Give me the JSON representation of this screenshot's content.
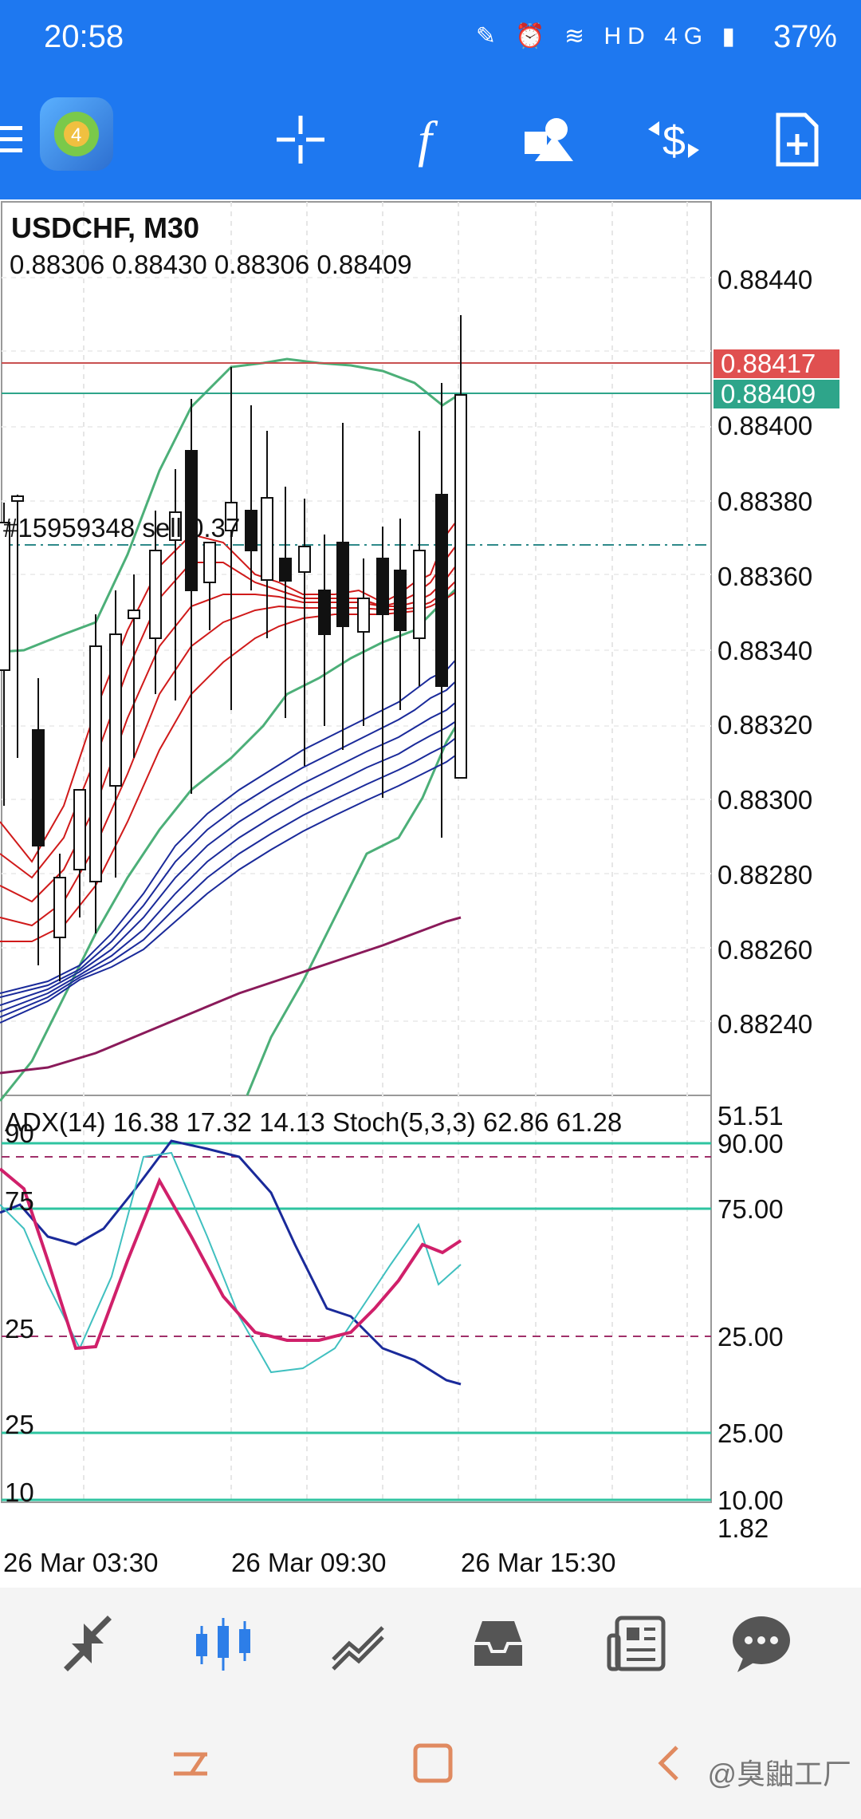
{
  "status_bar": {
    "time": "20:58",
    "icons": "✎ ⏰ ≋ HD 4G ▮",
    "battery": "37%"
  },
  "toolbar": {
    "menu_icon": "menu-icon",
    "crosshair_icon": "crosshair-icon",
    "indicator_icon": "function-icon",
    "objects_icon": "shapes-icon",
    "trade_icon": "dollar-cycle-icon",
    "template_icon": "add-page-icon"
  },
  "chart": {
    "symbol": "USDCHF, M30",
    "ohlc": "0.88306 0.88430 0.88306 0.88409",
    "order_label": "#15959348 sell 0.37",
    "price_ask": "0.88417",
    "price_bid": "0.88409",
    "price_axis": [
      "0.88440",
      "0.88400",
      "0.88380",
      "0.88360",
      "0.88340",
      "0.88320",
      "0.88300",
      "0.88280",
      "0.88260",
      "0.88240"
    ],
    "indicator_title": "ADX(14) 16.38 17.32 14.13 Stoch(5,3,3) 62.86 61.28",
    "indicator_axis": [
      "51.51",
      "90.00",
      "75.00",
      "25.00",
      "25.00",
      "10.00",
      "1.82"
    ],
    "left_levels": [
      "90",
      "75",
      "25",
      "25",
      "10"
    ],
    "time_axis": [
      "26 Mar 03:30",
      "26 Mar 09:30",
      "26 Mar 15:30"
    ],
    "colors": {
      "up_candle": "#ffffff",
      "down_candle": "#111111",
      "bollinger": "#4caf78",
      "red_ma": "#d01a1a",
      "blue_ma": "#1a2a9a",
      "purple_ma": "#8a1a5a",
      "stoch_main": "#d0206a",
      "stoch_signal": "#40c0c0",
      "adx": "#1a2a9a",
      "ask_label": "#e05050",
      "bid_label": "#2ea58a"
    }
  },
  "bottom_nav": [
    "quotes-icon",
    "chart-icon",
    "trade-icon",
    "history-icon",
    "news-icon",
    "messages-icon"
  ],
  "system_nav": [
    "recent-apps-icon",
    "home-icon",
    "back-icon"
  ],
  "watermark": "@臭鼬工厂"
}
